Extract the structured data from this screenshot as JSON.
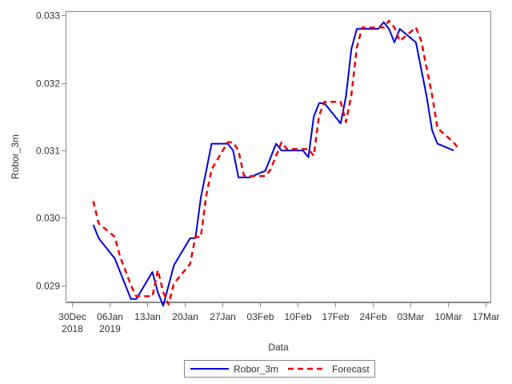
{
  "chart_data": {
    "type": "line",
    "xlabel": "Data",
    "ylabel": "Robor_3m",
    "ylim": [
      0.02875,
      0.03305
    ],
    "xlim": [
      "2018-12-29",
      "2019-03-18"
    ],
    "x_ticks": [
      {
        "date": "2018-12-30",
        "label": "30Dec",
        "label2": "2018"
      },
      {
        "date": "2019-01-06",
        "label": "06Jan",
        "label2": "2019"
      },
      {
        "date": "2019-01-13",
        "label": "13Jan",
        "label2": ""
      },
      {
        "date": "2019-01-20",
        "label": "20Jan",
        "label2": ""
      },
      {
        "date": "2019-01-27",
        "label": "27Jan",
        "label2": ""
      },
      {
        "date": "2019-02-03",
        "label": "03Feb",
        "label2": ""
      },
      {
        "date": "2019-02-10",
        "label": "10Feb",
        "label2": ""
      },
      {
        "date": "2019-02-17",
        "label": "17Feb",
        "label2": ""
      },
      {
        "date": "2019-02-24",
        "label": "24Feb",
        "label2": ""
      },
      {
        "date": "2019-03-03",
        "label": "03Mar",
        "label2": ""
      },
      {
        "date": "2019-03-10",
        "label": "10Mar",
        "label2": ""
      },
      {
        "date": "2019-03-17",
        "label": "17Mar",
        "label2": ""
      }
    ],
    "y_ticks": [
      {
        "value": 0.029,
        "label": "0.029"
      },
      {
        "value": 0.03,
        "label": "0.030"
      },
      {
        "value": 0.031,
        "label": "0.031"
      },
      {
        "value": 0.032,
        "label": "0.032"
      },
      {
        "value": 0.033,
        "label": "0.033"
      }
    ],
    "grid": false,
    "legend_position": "bottom-center",
    "series": [
      {
        "name": "Robor_3m",
        "color": "#0000dd",
        "style": "solid",
        "points": [
          [
            "2019-01-03",
            0.0299
          ],
          [
            "2019-01-04",
            0.0297
          ],
          [
            "2019-01-07",
            0.0294
          ],
          [
            "2019-01-08",
            0.0292
          ],
          [
            "2019-01-09",
            0.029
          ],
          [
            "2019-01-10",
            0.0288
          ],
          [
            "2019-01-11",
            0.0288
          ],
          [
            "2019-01-14",
            0.0292
          ],
          [
            "2019-01-15",
            0.0289
          ],
          [
            "2019-01-16",
            0.0287
          ],
          [
            "2019-01-17",
            0.029
          ],
          [
            "2019-01-18",
            0.0293
          ],
          [
            "2019-01-21",
            0.0297
          ],
          [
            "2019-01-22",
            0.0297
          ],
          [
            "2019-01-23",
            0.0303
          ],
          [
            "2019-01-24",
            0.0307
          ],
          [
            "2019-01-25",
            0.0311
          ],
          [
            "2019-01-28",
            0.0311
          ],
          [
            "2019-01-29",
            0.031
          ],
          [
            "2019-01-30",
            0.0306
          ],
          [
            "2019-01-31",
            0.0306
          ],
          [
            "2019-02-01",
            0.0306
          ],
          [
            "2019-02-04",
            0.0307
          ],
          [
            "2019-02-05",
            0.0309
          ],
          [
            "2019-02-06",
            0.0311
          ],
          [
            "2019-02-07",
            0.031
          ],
          [
            "2019-02-08",
            0.031
          ],
          [
            "2019-02-11",
            0.031
          ],
          [
            "2019-02-12",
            0.0309
          ],
          [
            "2019-02-13",
            0.0315
          ],
          [
            "2019-02-14",
            0.0317
          ],
          [
            "2019-02-15",
            0.0317
          ],
          [
            "2019-02-18",
            0.0314
          ],
          [
            "2019-02-19",
            0.0318
          ],
          [
            "2019-02-20",
            0.0325
          ],
          [
            "2019-02-21",
            0.0328
          ],
          [
            "2019-02-22",
            0.0328
          ],
          [
            "2019-02-25",
            0.0328
          ],
          [
            "2019-02-26",
            0.0329
          ],
          [
            "2019-02-27",
            0.0328
          ],
          [
            "2019-02-28",
            0.0326
          ],
          [
            "2019-03-01",
            0.0328
          ],
          [
            "2019-03-04",
            0.0326
          ],
          [
            "2019-03-05",
            0.0322
          ],
          [
            "2019-03-06",
            0.0318
          ],
          [
            "2019-03-07",
            0.0313
          ],
          [
            "2019-03-08",
            0.0311
          ],
          [
            "2019-03-11",
            0.031
          ]
        ]
      },
      {
        "name": "Forecast",
        "color": "#ee0000",
        "style": "dashed",
        "points": [
          [
            "2019-01-03",
            0.03025
          ],
          [
            "2019-01-04",
            0.02992
          ],
          [
            "2019-01-07",
            0.02972
          ],
          [
            "2019-01-08",
            0.02942
          ],
          [
            "2019-01-09",
            0.02922
          ],
          [
            "2019-01-10",
            0.029
          ],
          [
            "2019-01-11",
            0.02884
          ],
          [
            "2019-01-14",
            0.02884
          ],
          [
            "2019-01-15",
            0.02923
          ],
          [
            "2019-01-16",
            0.0289
          ],
          [
            "2019-01-17",
            0.02872
          ],
          [
            "2019-01-18",
            0.02903
          ],
          [
            "2019-01-21",
            0.02932
          ],
          [
            "2019-01-22",
            0.02972
          ],
          [
            "2019-01-23",
            0.02972
          ],
          [
            "2019-01-24",
            0.03033
          ],
          [
            "2019-01-25",
            0.03072
          ],
          [
            "2019-01-28",
            0.03112
          ],
          [
            "2019-01-29",
            0.03112
          ],
          [
            "2019-01-30",
            0.031
          ],
          [
            "2019-01-31",
            0.03063
          ],
          [
            "2019-02-01",
            0.03062
          ],
          [
            "2019-02-04",
            0.03062
          ],
          [
            "2019-02-05",
            0.03072
          ],
          [
            "2019-02-06",
            0.03092
          ],
          [
            "2019-02-07",
            0.03112
          ],
          [
            "2019-02-08",
            0.03102
          ],
          [
            "2019-02-11",
            0.03102
          ],
          [
            "2019-02-12",
            0.03102
          ],
          [
            "2019-02-13",
            0.03092
          ],
          [
            "2019-02-14",
            0.03152
          ],
          [
            "2019-02-15",
            0.03172
          ],
          [
            "2019-02-18",
            0.03172
          ],
          [
            "2019-02-19",
            0.03142
          ],
          [
            "2019-02-20",
            0.03182
          ],
          [
            "2019-02-21",
            0.03252
          ],
          [
            "2019-02-22",
            0.03282
          ],
          [
            "2019-02-25",
            0.03282
          ],
          [
            "2019-02-26",
            0.03282
          ],
          [
            "2019-02-27",
            0.03292
          ],
          [
            "2019-02-28",
            0.03282
          ],
          [
            "2019-03-01",
            0.03262
          ],
          [
            "2019-03-04",
            0.03282
          ],
          [
            "2019-03-05",
            0.03262
          ],
          [
            "2019-03-06",
            0.03222
          ],
          [
            "2019-03-07",
            0.03182
          ],
          [
            "2019-03-08",
            0.03133
          ],
          [
            "2019-03-11",
            0.03112
          ],
          [
            "2019-03-12",
            0.03102
          ]
        ]
      }
    ]
  }
}
